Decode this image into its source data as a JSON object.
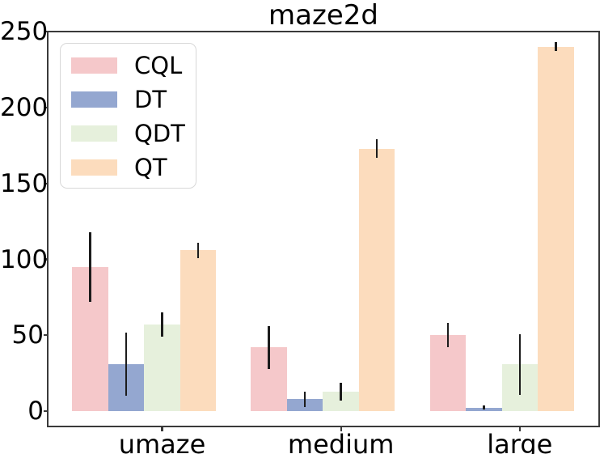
{
  "chart_data": {
    "type": "bar",
    "title": "maze2d",
    "xlabel": "",
    "ylabel": "",
    "categories": [
      "umaze",
      "medium",
      "large"
    ],
    "series": [
      {
        "name": "CQL",
        "color": "#f5c8ca",
        "values": [
          95,
          42,
          50
        ],
        "errors": [
          23,
          14,
          8
        ]
      },
      {
        "name": "DT",
        "color": "#94a7d0",
        "values": [
          31,
          8,
          2.5
        ],
        "errors": [
          21,
          5,
          1.5
        ]
      },
      {
        "name": "QDT",
        "color": "#e6f0dc",
        "values": [
          57,
          13,
          31
        ],
        "errors": [
          8,
          6,
          20
        ]
      },
      {
        "name": "QT",
        "color": "#fcdcbd",
        "values": [
          106,
          173,
          240
        ],
        "errors": [
          5,
          6,
          3
        ]
      }
    ],
    "y_ticks": [
      0,
      50,
      100,
      150,
      200,
      250
    ],
    "ylim": [
      -10,
      250
    ],
    "grid": false,
    "legend_position": "upper-left",
    "colors": {
      "error_bar": "#1c1c1c",
      "axis": "#3a3a3a",
      "text": "#000000",
      "background": "#ffffff",
      "legend_border": "#d8d8d8"
    }
  }
}
